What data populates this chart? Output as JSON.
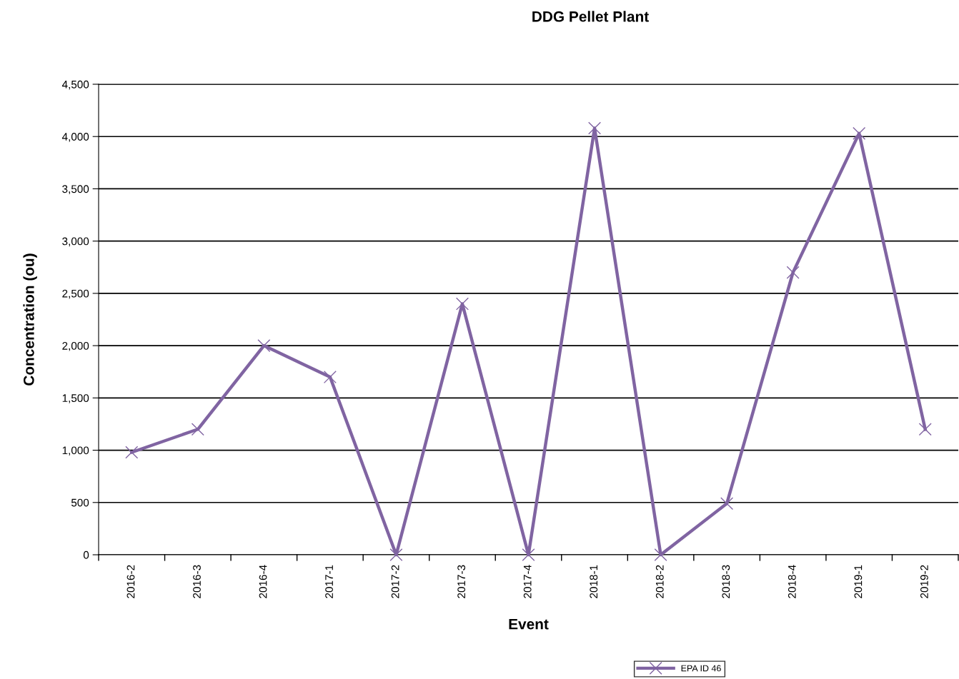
{
  "chart_data": {
    "type": "line",
    "title": "DDG Pellet Plant",
    "xlabel": "Event",
    "ylabel": "Concentration (ou)",
    "categories": [
      "2016-2",
      "2016-3",
      "2016-4",
      "2017-1",
      "2017-2",
      "2017-3",
      "2017-4",
      "2018-1",
      "2018-2",
      "2018-3",
      "2018-4",
      "2019-1",
      "2019-2"
    ],
    "series": [
      {
        "name": "EPA ID 46",
        "color": "#8064a2",
        "values": [
          980,
          1200,
          2000,
          1700,
          0,
          2400,
          0,
          4080,
          0,
          490,
          2700,
          4030,
          1200
        ]
      }
    ],
    "ylim": [
      0,
      4500
    ],
    "yticks": [
      {
        "value": 0,
        "label": "0"
      },
      {
        "value": 500,
        "label": "500"
      },
      {
        "value": 1000,
        "label": "1,000"
      },
      {
        "value": 1500,
        "label": "1,500"
      },
      {
        "value": 2000,
        "label": "2,000"
      },
      {
        "value": 2500,
        "label": "2,500"
      },
      {
        "value": 3000,
        "label": "3,000"
      },
      {
        "value": 3500,
        "label": "3,500"
      },
      {
        "value": 4000,
        "label": "4,000"
      },
      {
        "value": 4500,
        "label": "4,500"
      }
    ],
    "grid": "y",
    "legend": "bottom",
    "marker": "cross",
    "line_style": "solid"
  }
}
